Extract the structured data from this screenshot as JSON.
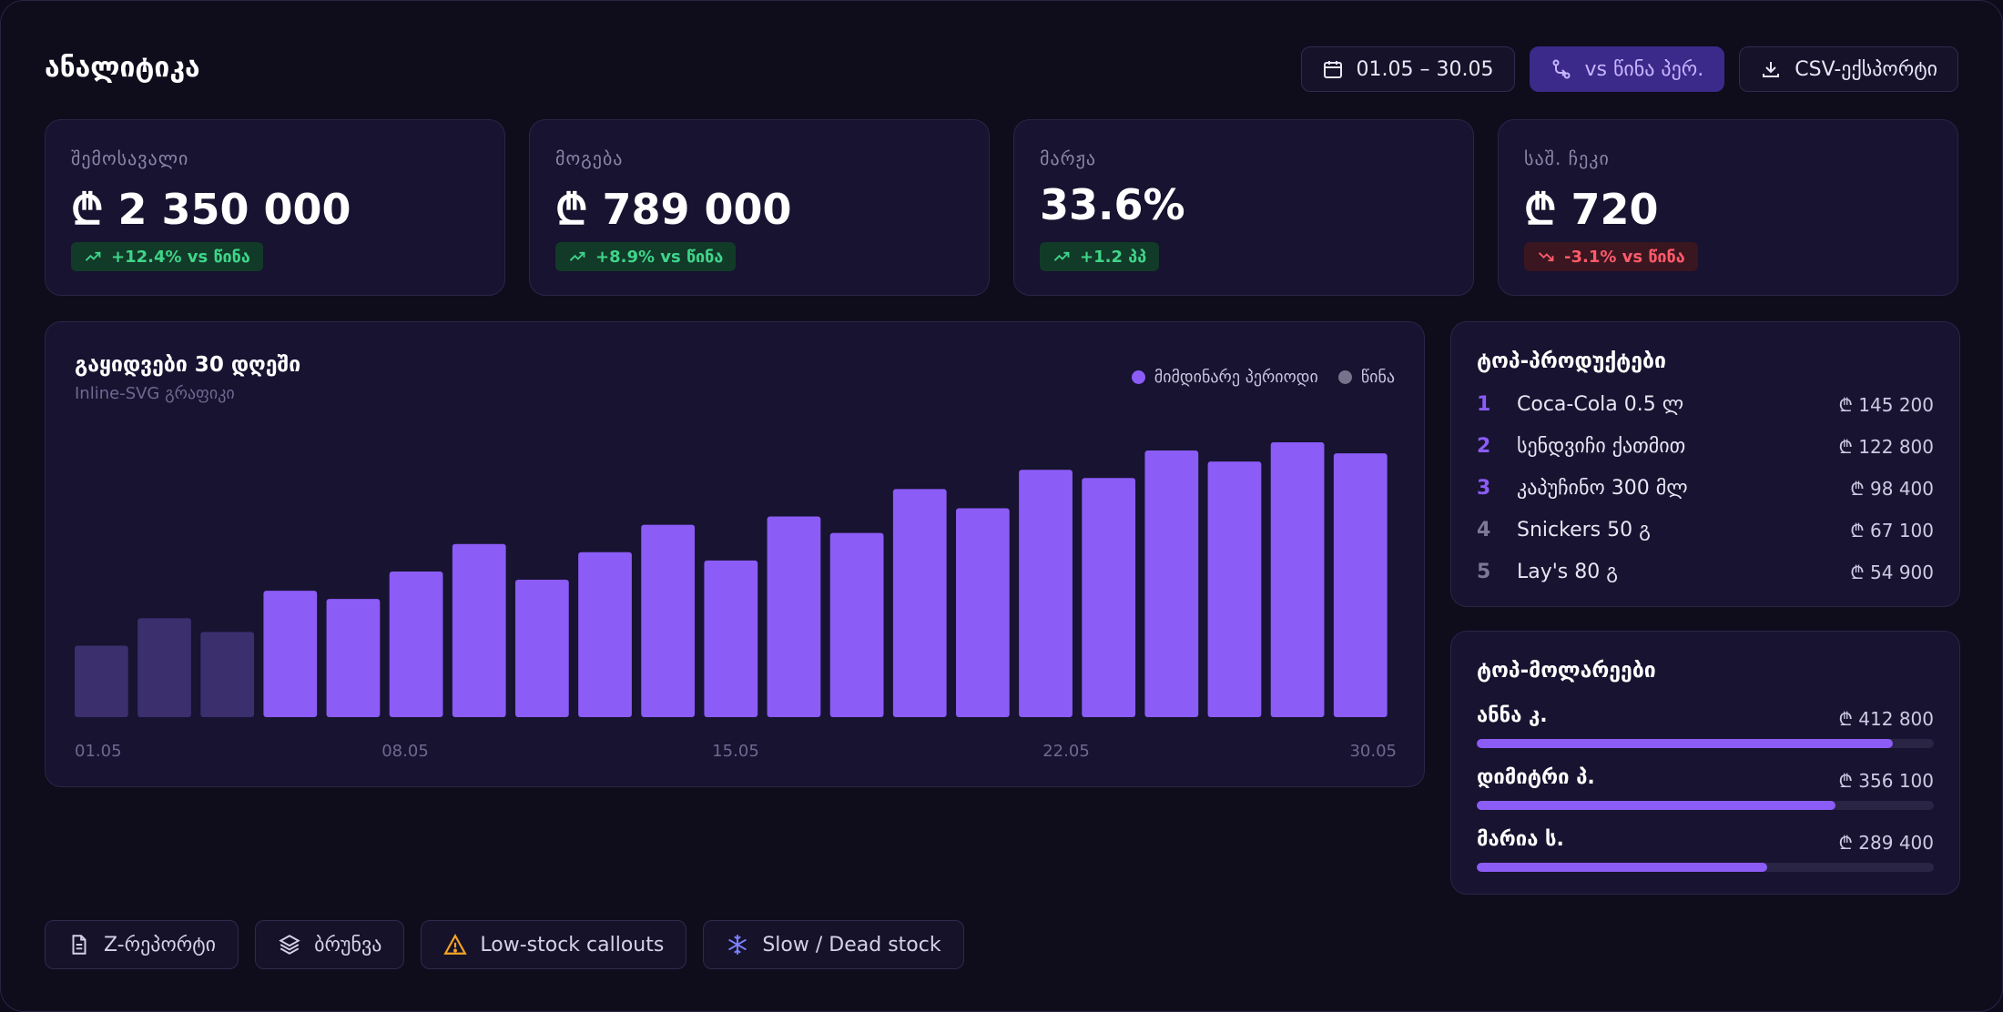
{
  "header": {
    "title": "ანალიტიკა",
    "date_range": "01.05 – 30.05",
    "compare_label": "vs წინა პერ.",
    "export_label": "CSV-ექსპორტი"
  },
  "kpis": [
    {
      "label": "შემოსავალი",
      "value": "₾ 2 350 000",
      "delta": "+12.4% vs წინა",
      "trend": "up"
    },
    {
      "label": "მოგება",
      "value": "₾ 789 000",
      "delta": "+8.9% vs წინა",
      "trend": "up"
    },
    {
      "label": "მარჟა",
      "value": "33.6%",
      "delta": "+1.2 პპ",
      "trend": "up"
    },
    {
      "label": "საშ. ჩეკი",
      "value": "₾ 720",
      "delta": "-3.1% vs წინა",
      "trend": "down"
    }
  ],
  "sales_chart": {
    "title": "გაყიდვები 30 დღეში",
    "subtitle": "Inline-SVG გრაფიკი",
    "legend_current": "მიმდინარე პერიოდი",
    "legend_previous": "წინა"
  },
  "chart_data": {
    "type": "bar",
    "series": [
      {
        "name": "მიმდინარე პერიოდი",
        "values": [
          null,
          null,
          null,
          46,
          43,
          53,
          63,
          50,
          60,
          70,
          57,
          73,
          67,
          83,
          76,
          90,
          87,
          97,
          93,
          100,
          96
        ]
      },
      {
        "name": "წინა",
        "values": [
          26,
          36,
          31,
          null,
          null,
          null,
          null,
          null,
          null,
          null,
          null,
          null,
          null,
          null,
          null,
          null,
          null,
          null,
          null,
          null,
          null
        ]
      }
    ],
    "x_ticks": [
      "01.05",
      "08.05",
      "15.05",
      "22.05",
      "30.05"
    ],
    "ylim": [
      0,
      100
    ],
    "grid": false,
    "legend_position": "top-right",
    "colors": {
      "current": "#8b5cf6",
      "previous": "#3b2f6e"
    }
  },
  "top_products": {
    "title": "ტოპ-პროდუქტები",
    "items": [
      {
        "rank": "1",
        "name": "Coca-Cola 0.5 ლ",
        "value": "₾ 145 200"
      },
      {
        "rank": "2",
        "name": "სენდვიჩი ქათმით",
        "value": "₾ 122 800"
      },
      {
        "rank": "3",
        "name": "კაპუჩინო 300 მლ",
        "value": "₾ 98 400"
      },
      {
        "rank": "4",
        "name": "Snickers 50 გ",
        "value": "₾ 67 100"
      },
      {
        "rank": "5",
        "name": "Lay's 80 გ",
        "value": "₾ 54 900"
      }
    ]
  },
  "top_sellers": {
    "title": "ტოპ-მოლარეები",
    "items": [
      {
        "name": "ანნა კ.",
        "value": "₾ 412 800",
        "progress": 0.91
      },
      {
        "name": "დიმიტრი პ.",
        "value": "₾ 356 100",
        "progress": 0.785
      },
      {
        "name": "მარია ს.",
        "value": "₾ 289 400",
        "progress": 0.635
      }
    ]
  },
  "footer_buttons": [
    {
      "label": "Z-რეპორტი",
      "icon": "document-icon"
    },
    {
      "label": "ბრუნვა",
      "icon": "layers-icon"
    },
    {
      "label": "Low-stock callouts",
      "icon": "warning-icon"
    },
    {
      "label": "Slow / Dead stock",
      "icon": "snowflake-icon"
    }
  ],
  "colors": {
    "accent": "#8b5cf6",
    "background": "#0f0c1c",
    "card": "#171330",
    "positive": "#3fd58a",
    "negative": "#ff5a6a",
    "warning": "#f5a524",
    "rank_highlight": "#8b5cf6",
    "rank_muted": "#7d7896"
  }
}
